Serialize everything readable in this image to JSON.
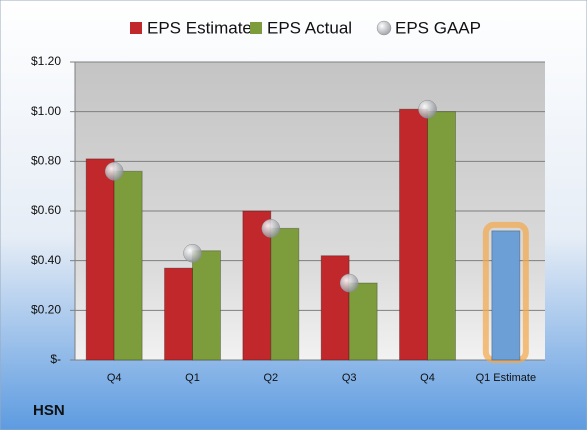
{
  "chart_data": {
    "type": "bar",
    "company": "HSN",
    "categories": [
      "Q4",
      "Q1",
      "Q2",
      "Q3",
      "Q4",
      "Q1 Estimate"
    ],
    "series": [
      {
        "name": "EPS Estimate",
        "color": "#c0282b",
        "values": [
          0.81,
          0.37,
          0.6,
          0.42,
          1.01,
          0.52
        ],
        "colors": [
          "#c0282b",
          "#c0282b",
          "#c0282b",
          "#c0282b",
          "#c0282b",
          "#6c9fd6"
        ]
      },
      {
        "name": "EPS Actual",
        "color": "#7d9c3c",
        "values": [
          0.76,
          0.44,
          0.53,
          0.31,
          1.0,
          null
        ]
      },
      {
        "name": "EPS GAAP",
        "color": "#a8acb2",
        "marker": "sphere",
        "values": [
          0.76,
          0.43,
          0.53,
          0.31,
          1.01,
          null
        ]
      }
    ],
    "ylim": [
      0,
      1.2
    ],
    "yticks": [
      {
        "value": 0,
        "label": "$-"
      },
      {
        "value": 0.2,
        "label": "$0.20"
      },
      {
        "value": 0.4,
        "label": "$0.40"
      },
      {
        "value": 0.6,
        "label": "$0.60"
      },
      {
        "value": 0.8,
        "label": "$0.80"
      },
      {
        "value": 1.0,
        "label": "$1.00"
      },
      {
        "value": 1.2,
        "label": "$1.20"
      }
    ],
    "grid": true,
    "legend": "top"
  }
}
